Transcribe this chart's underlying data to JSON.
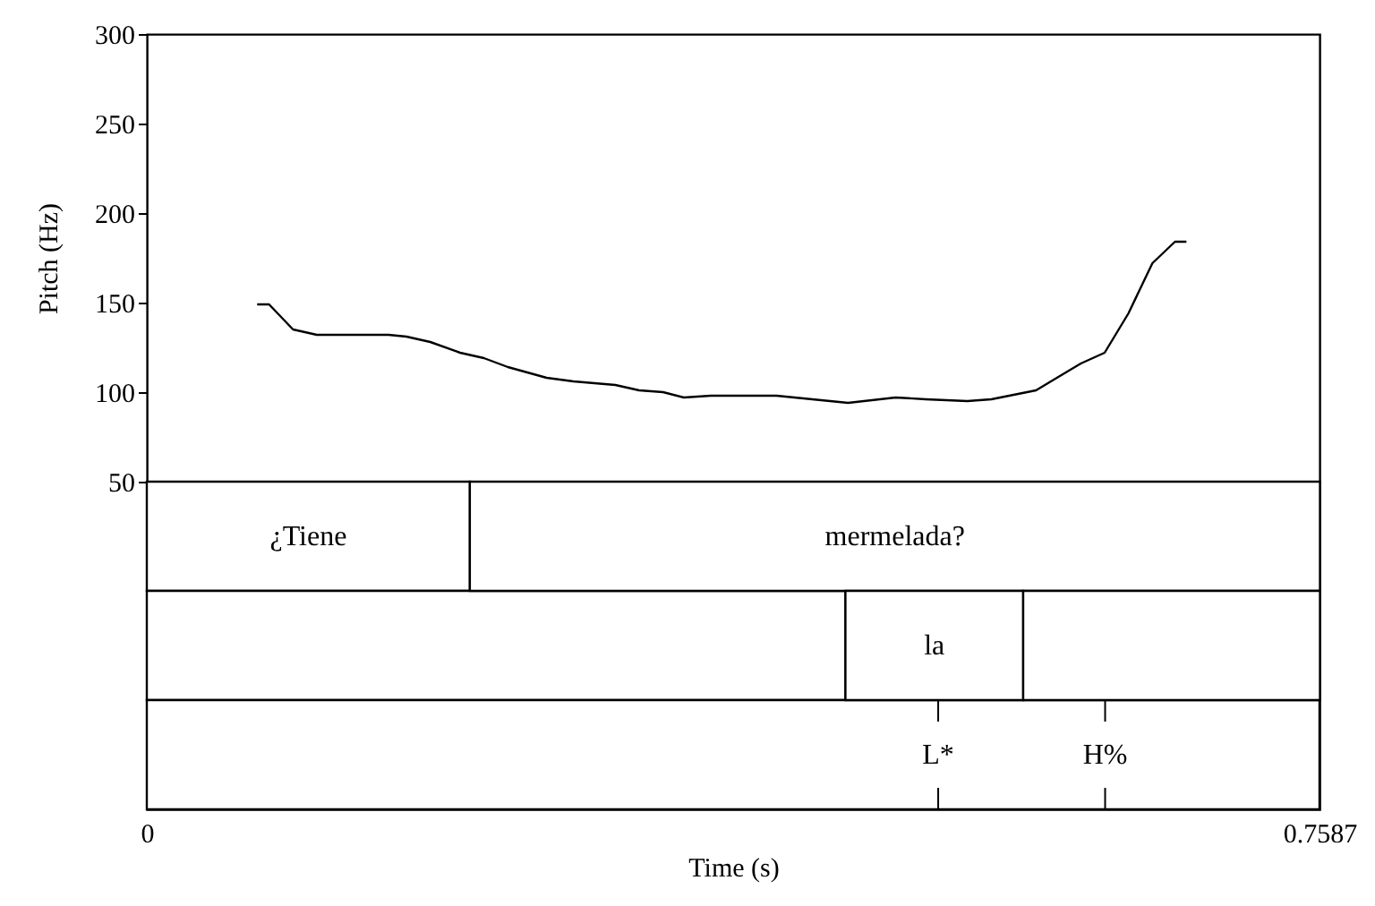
{
  "chart_data": [
    {
      "type": "line",
      "ylabel": "Pitch (Hz)",
      "xlim": [
        0,
        0.7587
      ],
      "ylim": [
        50,
        300
      ],
      "yticks": [
        50,
        100,
        150,
        200,
        250,
        300
      ],
      "tick_labels": "y",
      "grid": false,
      "legend": false,
      "series": [
        {
          "color": "#000000",
          "x": [
            0.0714,
            0.0791,
            0.0946,
            0.11,
            0.1564,
            0.168,
            0.1834,
            0.2027,
            0.2181,
            0.2336,
            0.2587,
            0.276,
            0.3031,
            0.3185,
            0.334,
            0.3475,
            0.3649,
            0.4074,
            0.4537,
            0.4845,
            0.5039,
            0.5309,
            0.5464,
            0.5753,
            0.5888,
            0.6043,
            0.6197,
            0.6351,
            0.6506,
            0.6652,
            0.6726
          ],
          "values": [
            149,
            149,
            135,
            132,
            132,
            131,
            128,
            122,
            119,
            114,
            108,
            106,
            104,
            101,
            100,
            97,
            98,
            98,
            94,
            97,
            96,
            95,
            96,
            101,
            108,
            116,
            122,
            144,
            172,
            184,
            184
          ]
        }
      ]
    },
    {
      "type": "bar",
      "orientation": "horizontal",
      "stacked": true,
      "categories": [
        null,
        null,
        null
      ],
      "xlim": [
        0,
        0.7587
      ],
      "xticks": [
        0,
        0.7587
      ],
      "xlabel": "Time (s)",
      "tick_labels": "x",
      "series": [
        {
          "color": "#ffffff",
          "values": [
            0.209,
            0.452,
            0.7587
          ],
          "value_labels": [
            "¿Tiene",
            null,
            null
          ]
        },
        {
          "color": "#ffffff",
          "values": [
            0.55,
            0.115,
            null
          ],
          "value_labels": [
            "mermelada?",
            "la",
            null
          ]
        },
        {
          "color": "#ffffff",
          "values": [
            null,
            0.192,
            null
          ],
          "value_labels": [
            null,
            null,
            null
          ]
        }
      ],
      "ref_lines": [
        {
          "axis": "x",
          "value": 0.512,
          "label": "L*"
        },
        {
          "axis": "x",
          "value": 0.62,
          "label": "H%"
        }
      ]
    }
  ]
}
